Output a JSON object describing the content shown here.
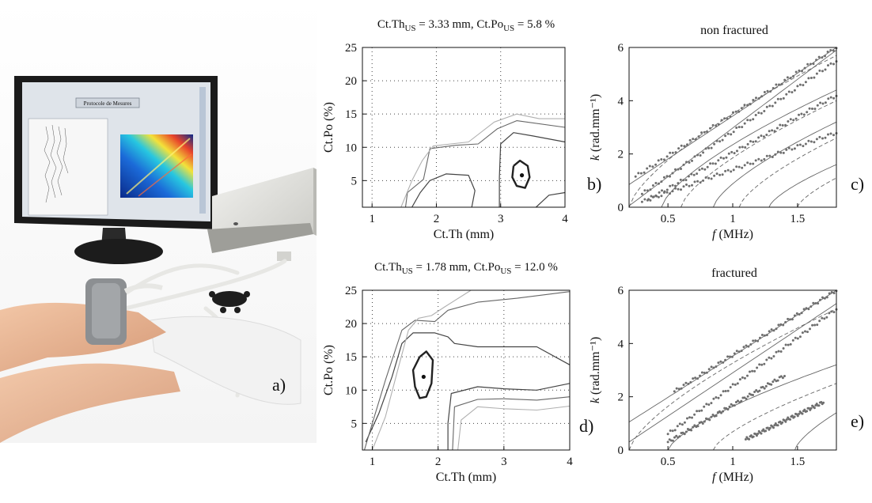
{
  "figure": {
    "panel_a": {
      "letter": "a)"
    },
    "panel_b": {
      "title": "Ct.Th",
      "title_sub1": "US",
      "title_mid": " = 3.33 mm, Ct.Po",
      "title_sub2": "US",
      "title_end": " = 5.8 %",
      "letter": "b)"
    },
    "panel_c": {
      "title": "non fractured",
      "letter": "c)"
    },
    "panel_d": {
      "title": "Ct.Th",
      "title_sub1": "US",
      "title_mid": " = 1.78 mm, Ct.Po",
      "title_sub2": "US",
      "title_end": " = 12.0 %",
      "letter": "d)"
    },
    "panel_e": {
      "title": "fractured",
      "letter": "e)"
    }
  },
  "photo": {
    "screen_title": "Protocole de Mesures",
    "colors": {
      "skin": "#e9b596",
      "coat": "#f2f2f2",
      "device": "#e3e3df",
      "probe": "#8c8f92",
      "monitor": "#1b1b1b"
    },
    "icons": [
      "monitor-icon",
      "ultrasound-probe-icon",
      "acquisition-device-icon",
      "connector-hub-icon"
    ]
  },
  "chart_data": [
    {
      "type": "contour",
      "panel": "b",
      "xlabel": "Ct.Th (mm)",
      "ylabel": "Ct.Po (%)",
      "xlim": [
        0.85,
        4
      ],
      "ylim": [
        1,
        25
      ],
      "xticks": [
        1,
        2,
        3,
        4
      ],
      "yticks": [
        5,
        10,
        15,
        20,
        25
      ],
      "grid": true,
      "estimate": {
        "x": 3.33,
        "y": 5.8
      },
      "contours": [
        {
          "level": "inner",
          "color": "#222222",
          "width": 2.4,
          "points": [
            [
              3.2,
              7.2
            ],
            [
              3.3,
              8.0
            ],
            [
              3.42,
              7.2
            ],
            [
              3.45,
              5.5
            ],
            [
              3.38,
              3.9
            ],
            [
              3.25,
              4.2
            ],
            [
              3.18,
              5.5
            ],
            [
              3.2,
              7.2
            ]
          ]
        },
        {
          "level": "mid-right",
          "color": "#444444",
          "width": 1.2,
          "points": [
            [
              2.98,
              1.0
            ],
            [
              2.98,
              5.5
            ],
            [
              3.0,
              10.5
            ],
            [
              3.2,
              12.2
            ],
            [
              3.5,
              11.7
            ],
            [
              4.0,
              10.8
            ]
          ]
        },
        {
          "level": "mid-right-bottom",
          "color": "#444444",
          "width": 1.2,
          "points": [
            [
              4.0,
              3.2
            ],
            [
              3.75,
              2.8
            ],
            [
              3.55,
              1.0
            ]
          ]
        },
        {
          "level": "mid-left",
          "color": "#444444",
          "width": 1.2,
          "points": [
            [
              1.62,
              1.0
            ],
            [
              1.75,
              3.2
            ],
            [
              1.9,
              5.0
            ],
            [
              2.15,
              6.0
            ],
            [
              2.5,
              5.8
            ],
            [
              2.6,
              3.5
            ],
            [
              2.55,
              1.0
            ]
          ]
        },
        {
          "level": "outer",
          "color": "#666666",
          "width": 1.1,
          "points": [
            [
              1.52,
              1.0
            ],
            [
              1.55,
              3.2
            ],
            [
              1.8,
              5.2
            ],
            [
              1.9,
              9.8
            ],
            [
              2.3,
              10.3
            ],
            [
              2.65,
              10.5
            ],
            [
              2.95,
              12.8
            ],
            [
              3.25,
              14.0
            ],
            [
              4.0,
              13.0
            ]
          ]
        },
        {
          "level": "outermost",
          "color": "#b0b0b0",
          "width": 1.1,
          "points": [
            [
              1.45,
              1.0
            ],
            [
              1.62,
              5.0
            ],
            [
              1.78,
              8.0
            ],
            [
              1.95,
              10.2
            ],
            [
              2.5,
              10.8
            ],
            [
              2.9,
              13.8
            ],
            [
              3.25,
              15.0
            ],
            [
              3.6,
              14.3
            ],
            [
              4.0,
              14.3
            ]
          ]
        }
      ]
    },
    {
      "type": "scatter",
      "panel": "c",
      "title": "non fractured",
      "xlabel": "f (MHz)",
      "ylabel": "k (rad.mm⁻¹)",
      "xlim": [
        0.2,
        1.8
      ],
      "ylim": [
        0,
        6
      ],
      "xticks": [
        0.5,
        1,
        1.5
      ],
      "yticks": [
        0,
        2,
        4,
        6
      ],
      "model_curves": [
        {
          "style": "solid",
          "x0": 0.2,
          "y0": 0.85,
          "x1": 1.8,
          "y1": 6.0
        },
        {
          "style": "solid",
          "x0": 0.2,
          "y0": 0.05,
          "x1": 1.8,
          "y1": 5.9
        },
        {
          "style": "dashed",
          "x0": 0.2,
          "y0": 0.0,
          "x1": 1.8,
          "y1": 5.7
        },
        {
          "style": "solid",
          "x0": 0.45,
          "y0": 0.0,
          "x1": 1.8,
          "y1": 4.4
        },
        {
          "style": "dashed",
          "x0": 0.6,
          "y0": 0.0,
          "x1": 1.8,
          "y1": 4.0
        },
        {
          "style": "solid",
          "x0": 0.85,
          "y0": 0.0,
          "x1": 1.8,
          "y1": 3.2
        },
        {
          "style": "dashed",
          "x0": 1.05,
          "y0": 0.0,
          "x1": 1.8,
          "y1": 2.6
        },
        {
          "style": "solid",
          "x0": 1.28,
          "y0": 0.0,
          "x1": 1.8,
          "y1": 1.6
        },
        {
          "style": "dashed",
          "x0": 1.5,
          "y0": 0.0,
          "x1": 1.8,
          "y1": 1.1
        }
      ],
      "measured_branches": [
        {
          "x0": 0.25,
          "x1": 1.8,
          "y0": 1.15,
          "y1": 6.0
        },
        {
          "x0": 0.3,
          "x1": 1.8,
          "y0": 0.5,
          "y1": 5.5
        },
        {
          "x0": 0.35,
          "x1": 1.8,
          "y0": 0.3,
          "y1": 4.2
        },
        {
          "x0": 0.3,
          "x1": 1.8,
          "y0": 0.2,
          "y1": 2.8
        }
      ]
    },
    {
      "type": "contour",
      "panel": "d",
      "xlabel": "Ct.Th (mm)",
      "ylabel": "Ct.Po (%)",
      "xlim": [
        0.85,
        4
      ],
      "ylim": [
        1,
        25
      ],
      "xticks": [
        1,
        2,
        3,
        4
      ],
      "yticks": [
        5,
        10,
        15,
        20,
        25
      ],
      "grid": true,
      "estimate": {
        "x": 1.78,
        "y": 12.0
      },
      "contours": [
        {
          "level": "inner",
          "color": "#222222",
          "width": 2.4,
          "points": [
            [
              1.72,
              15.0
            ],
            [
              1.82,
              15.8
            ],
            [
              1.92,
              14.5
            ],
            [
              1.9,
              11.0
            ],
            [
              1.82,
              9.0
            ],
            [
              1.72,
              8.8
            ],
            [
              1.65,
              10.5
            ],
            [
              1.62,
              13.0
            ],
            [
              1.72,
              15.0
            ]
          ]
        },
        {
          "level": "mid-a",
          "color": "#444444",
          "width": 1.2,
          "points": [
            [
              0.9,
              2.2
            ],
            [
              1.1,
              6.5
            ],
            [
              1.3,
              12.0
            ],
            [
              1.45,
              17.0
            ],
            [
              1.62,
              18.6
            ],
            [
              1.95,
              18.6
            ],
            [
              2.15,
              18.0
            ],
            [
              2.25,
              17.0
            ],
            [
              2.6,
              16.5
            ],
            [
              3.0,
              16.5
            ],
            [
              3.5,
              16.5
            ],
            [
              4.0,
              13.8
            ]
          ]
        },
        {
          "level": "mid-b",
          "color": "#444444",
          "width": 1.2,
          "points": [
            [
              2.15,
              1.0
            ],
            [
              2.15,
              5.0
            ],
            [
              2.2,
              9.5
            ],
            [
              2.6,
              10.5
            ],
            [
              3.0,
              10.2
            ],
            [
              3.5,
              10.0
            ],
            [
              4.0,
              11.0
            ]
          ]
        },
        {
          "level": "outer",
          "color": "#666666",
          "width": 1.1,
          "points": [
            [
              0.88,
              1.0
            ],
            [
              1.0,
              5.0
            ],
            [
              1.2,
              11.5
            ],
            [
              1.45,
              19.0
            ],
            [
              1.65,
              20.5
            ],
            [
              1.95,
              20.3
            ],
            [
              2.15,
              22.0
            ],
            [
              2.6,
              23.2
            ],
            [
              3.2,
              23.8
            ],
            [
              4.0,
              24.8
            ]
          ]
        },
        {
          "level": "outer-b",
          "color": "#666666",
          "width": 1.1,
          "points": [
            [
              2.22,
              1.0
            ],
            [
              2.25,
              7.5
            ],
            [
              2.6,
              8.6
            ],
            [
              3.0,
              8.7
            ],
            [
              3.5,
              8.5
            ],
            [
              4.0,
              9.0
            ]
          ]
        },
        {
          "level": "outermost",
          "color": "#b0b0b0",
          "width": 1.1,
          "points": [
            [
              1.0,
              1.0
            ],
            [
              1.2,
              6.0
            ],
            [
              1.4,
              13.5
            ],
            [
              1.55,
              19.0
            ],
            [
              1.7,
              20.8
            ],
            [
              1.9,
              21.2
            ],
            [
              2.1,
              22.5
            ],
            [
              2.5,
              25.0
            ]
          ]
        },
        {
          "level": "outermost-b",
          "color": "#b0b0b0",
          "width": 1.1,
          "points": [
            [
              2.3,
              1.0
            ],
            [
              2.35,
              5.5
            ],
            [
              2.6,
              7.5
            ],
            [
              3.0,
              7.2
            ],
            [
              3.5,
              7.0
            ],
            [
              4.0,
              7.6
            ]
          ]
        }
      ]
    },
    {
      "type": "scatter",
      "panel": "e",
      "title": "fractured",
      "xlabel": "f (MHz)",
      "ylabel": "k (rad.mm⁻¹)",
      "xlim": [
        0.2,
        1.8
      ],
      "ylim": [
        0,
        6
      ],
      "xticks": [
        0.5,
        1,
        1.5
      ],
      "yticks": [
        0,
        2,
        4,
        6
      ],
      "model_curves": [
        {
          "style": "solid",
          "x0": 0.2,
          "y0": 1.05,
          "x1": 1.8,
          "y1": 6.0
        },
        {
          "style": "solid",
          "x0": 0.2,
          "y0": 0.3,
          "x1": 1.8,
          "y1": 5.5
        },
        {
          "style": "dashed",
          "x0": 0.2,
          "y0": 0.0,
          "x1": 1.8,
          "y1": 5.3
        },
        {
          "style": "solid",
          "x0": 0.5,
          "y0": 0.0,
          "x1": 1.8,
          "y1": 3.2
        },
        {
          "style": "dashed",
          "x0": 0.85,
          "y0": 0.0,
          "x1": 1.8,
          "y1": 2.5
        },
        {
          "style": "solid",
          "x0": 1.48,
          "y0": 0.0,
          "x1": 1.8,
          "y1": 1.4
        }
      ],
      "measured_branches": [
        {
          "x0": 0.55,
          "x1": 1.8,
          "y0": 2.2,
          "y1": 6.0
        },
        {
          "x0": 0.5,
          "x1": 1.8,
          "y0": 0.6,
          "y1": 5.3
        },
        {
          "x0": 0.5,
          "x1": 1.4,
          "y0": 0.3,
          "y1": 2.8
        },
        {
          "x0": 1.1,
          "x1": 1.7,
          "y0": 0.4,
          "y1": 1.8
        }
      ]
    }
  ]
}
